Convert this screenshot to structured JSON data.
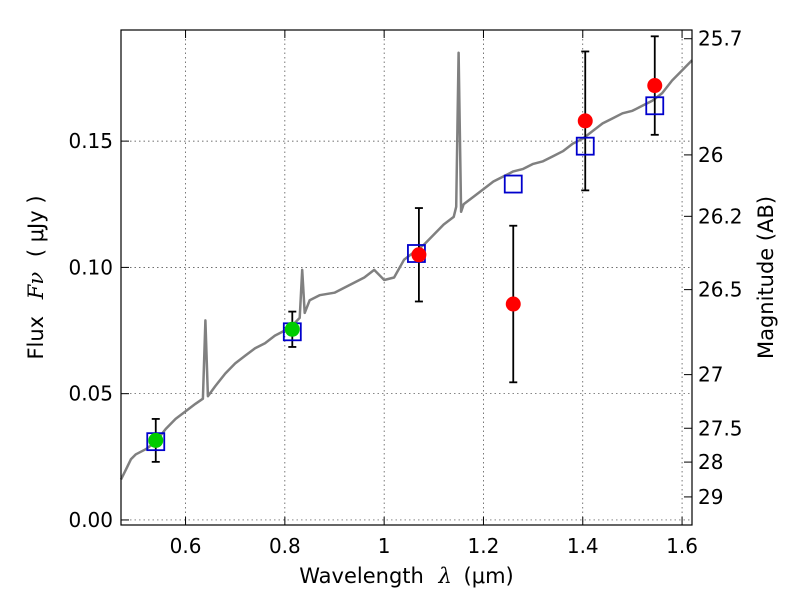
{
  "chart_data": {
    "type": "scatter",
    "xlabel_prefix": "Wavelength",
    "xlabel_symbol": "λ",
    "xlabel_unit": "(μm)",
    "ylabel_prefix": "Flux",
    "ylabel_symbol": "Fν",
    "ylabel_unit": "( μJy )",
    "y2label": "Magnitude (AB)",
    "xlim": [
      0.47,
      1.62
    ],
    "ylim": [
      -0.002,
      0.194
    ],
    "xticks": [
      0.6,
      0.8,
      1.0,
      1.2,
      1.4,
      1.6
    ],
    "xtick_labels": [
      "0.6",
      "0.8",
      "1",
      "1.2",
      "1.4",
      "1.6"
    ],
    "yticks": [
      0.0,
      0.05,
      0.1,
      0.15
    ],
    "ytick_labels": [
      "0.00",
      "0.05",
      "0.10",
      "0.15"
    ],
    "mag_ticks": [
      25.7,
      26,
      26.2,
      26.5,
      27,
      27.5,
      28,
      29
    ],
    "mag_tick_labels": [
      "25.7",
      "26",
      "26.2",
      "26.5",
      "27",
      "27.5",
      "28",
      "29"
    ],
    "mag_zero_point": 23.9,
    "grid": true,
    "series": [
      {
        "name": "observed photometry (green)",
        "color": "#00cc00",
        "x": [
          0.54,
          0.815
        ],
        "y": [
          0.0315,
          0.0755
        ],
        "yerr": [
          0.0085,
          0.007
        ]
      },
      {
        "name": "observed photometry (red)",
        "color": "#ff0000",
        "x": [
          1.07,
          1.26,
          1.405,
          1.545
        ],
        "y": [
          0.105,
          0.0855,
          0.158,
          0.172
        ],
        "yerr": [
          0.0185,
          0.031,
          0.0275,
          0.0195
        ]
      },
      {
        "name": "model photometry (open squares)",
        "color": "#0000cc",
        "x": [
          0.54,
          0.815,
          1.065,
          1.26,
          1.405,
          1.545
        ],
        "y": [
          0.031,
          0.0745,
          0.1055,
          0.133,
          0.148,
          0.164
        ]
      },
      {
        "name": "model spectrum",
        "color": "#808080",
        "x": [
          0.47,
          0.48,
          0.49,
          0.5,
          0.52,
          0.54,
          0.56,
          0.58,
          0.6,
          0.62,
          0.635,
          0.64,
          0.645,
          0.66,
          0.68,
          0.7,
          0.72,
          0.74,
          0.76,
          0.78,
          0.8,
          0.815,
          0.83,
          0.835,
          0.84,
          0.85,
          0.87,
          0.9,
          0.93,
          0.96,
          0.98,
          1.0,
          1.02,
          1.04,
          1.06,
          1.08,
          1.1,
          1.12,
          1.14,
          1.145,
          1.15,
          1.155,
          1.16,
          1.18,
          1.2,
          1.22,
          1.24,
          1.26,
          1.28,
          1.3,
          1.32,
          1.34,
          1.36,
          1.38,
          1.4,
          1.42,
          1.44,
          1.46,
          1.48,
          1.5,
          1.52,
          1.54,
          1.56,
          1.58,
          1.6,
          1.62
        ],
        "y": [
          0.016,
          0.02,
          0.024,
          0.026,
          0.028,
          0.031,
          0.036,
          0.04,
          0.043,
          0.046,
          0.048,
          0.079,
          0.049,
          0.053,
          0.058,
          0.062,
          0.065,
          0.068,
          0.07,
          0.073,
          0.075,
          0.077,
          0.08,
          0.099,
          0.082,
          0.087,
          0.089,
          0.09,
          0.093,
          0.096,
          0.099,
          0.095,
          0.096,
          0.103,
          0.106,
          0.109,
          0.113,
          0.117,
          0.12,
          0.124,
          0.185,
          0.122,
          0.125,
          0.128,
          0.131,
          0.134,
          0.136,
          0.138,
          0.139,
          0.141,
          0.142,
          0.144,
          0.146,
          0.149,
          0.151,
          0.154,
          0.157,
          0.159,
          0.161,
          0.162,
          0.164,
          0.166,
          0.169,
          0.174,
          0.178,
          0.182
        ]
      }
    ]
  }
}
